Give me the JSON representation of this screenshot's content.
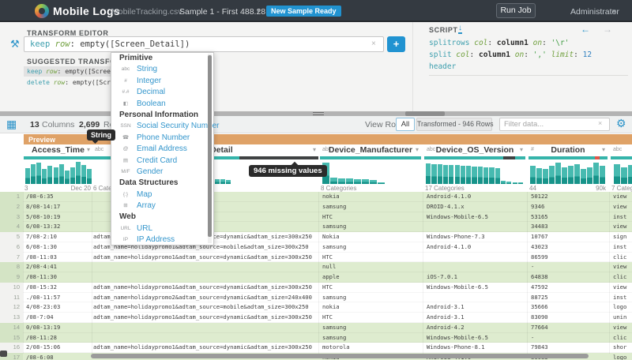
{
  "topbar": {
    "app_title": "Mobile Logs",
    "file_name": "MobileTracking.csv",
    "sample_label": "Sample 1 - First 488.28KB",
    "sample_caret": "▾",
    "new_sample_badge": "New Sample Ready",
    "run_job_label": "Run Job",
    "user_label": "Administrator",
    "user_caret": "▾"
  },
  "transform_editor": {
    "title": "TRANSFORM EDITOR",
    "hammer_icon": "⚒",
    "input_tokens": [
      [
        "keep",
        "kw"
      ],
      [
        " ",
        "pl"
      ],
      [
        "row",
        "param"
      ],
      [
        ": ",
        "pl"
      ],
      [
        "empty([Screen_Detail])",
        "pl"
      ]
    ],
    "clear_icon": "×",
    "add_button": "+",
    "suggested_title": "SUGGESTED TRANSFORMS",
    "suggestions": [
      {
        "selected": true,
        "tokens": [
          [
            "keep",
            "kw"
          ],
          [
            " ",
            "pl"
          ],
          [
            "row",
            "param"
          ],
          [
            ": ",
            "pl"
          ],
          [
            "empty([Screen_",
            "pl"
          ]
        ]
      },
      {
        "selected": false,
        "tokens": [
          [
            "delete",
            "kw"
          ],
          [
            " ",
            "pl"
          ],
          [
            "row",
            "param"
          ],
          [
            ": ",
            "pl"
          ],
          [
            "empty([Scre",
            "pl"
          ]
        ]
      }
    ]
  },
  "script_panel": {
    "title": "SCRIPT",
    "download_icon": "↓",
    "back_icon": "←",
    "forward_icon": "→",
    "lines": [
      [
        [
          "splitrows",
          "kw"
        ],
        [
          " ",
          "pl"
        ],
        [
          "col",
          "param"
        ],
        [
          ": ",
          "pl"
        ],
        [
          "column1",
          "val"
        ],
        [
          " ",
          "pl"
        ],
        [
          "on",
          "param"
        ],
        [
          ": ",
          "pl"
        ],
        [
          "'\\r'",
          "str"
        ]
      ],
      [
        [
          "split",
          "kw"
        ],
        [
          " ",
          "pl"
        ],
        [
          "col",
          "param"
        ],
        [
          ": ",
          "pl"
        ],
        [
          "column1",
          "val"
        ],
        [
          " ",
          "pl"
        ],
        [
          "on",
          "param"
        ],
        [
          ": ",
          "pl"
        ],
        [
          "','",
          "str"
        ],
        [
          " ",
          "pl"
        ],
        [
          "limit",
          "param"
        ],
        [
          ": ",
          "pl"
        ],
        [
          "12",
          "num"
        ]
      ],
      [
        [
          "header",
          "kw"
        ]
      ]
    ]
  },
  "type_dropdown": {
    "sections": [
      {
        "header": "Primitive",
        "items": [
          {
            "icon": "abc-icon",
            "glyph": "abc",
            "label": "String"
          },
          {
            "icon": "integer-icon",
            "glyph": "#",
            "label": "Integer"
          },
          {
            "icon": "decimal-icon",
            "glyph": "#.#",
            "label": "Decimal"
          },
          {
            "icon": "boolean-icon",
            "glyph": "◧",
            "label": "Boolean"
          }
        ]
      },
      {
        "header": "Personal Information",
        "items": [
          {
            "icon": "ssn-icon",
            "glyph": "SSN",
            "label": "Social Security Number"
          },
          {
            "icon": "phone-icon",
            "glyph": "☎",
            "label": "Phone Number"
          },
          {
            "icon": "email-icon",
            "glyph": "@",
            "label": "Email Address"
          },
          {
            "icon": "credit-card-icon",
            "glyph": "▤",
            "label": "Credit Card"
          },
          {
            "icon": "gender-icon",
            "glyph": "M/F",
            "label": "Gender"
          }
        ]
      },
      {
        "header": "Data Structures",
        "items": [
          {
            "icon": "map-icon",
            "glyph": "{:}",
            "label": "Map"
          },
          {
            "icon": "array-icon",
            "glyph": "⊞",
            "label": "Array"
          }
        ]
      },
      {
        "header": "Web",
        "items": [
          {
            "icon": "url-icon",
            "glyph": "URL",
            "label": "URL"
          },
          {
            "icon": "ip-icon",
            "glyph": "IP",
            "label": "IP Address"
          }
        ]
      }
    ]
  },
  "grid_toolbar": {
    "grid_icon": "▦",
    "columns_count": "13",
    "columns_word": "Columns",
    "rows_count": "2,699",
    "rows_word": "Rows",
    "view_rows_label": "View Rows",
    "view_all_label": "All",
    "view_transformed_label": "Transformed - 946 Rows",
    "filter_placeholder": "Filter data...",
    "filter_clear_icon": "×",
    "gear_icon": "⚙"
  },
  "preview_label": "Preview",
  "tooltips": {
    "type_tooltip": "String",
    "missing_tooltip": "946 missing values"
  },
  "colors": {
    "accent_blue": "#2193d1",
    "teal": "#35b4aa",
    "bar_light": "#47bab0",
    "bar_dark": "#17948a",
    "quality_dark": "#3f4243",
    "quality_red": "#e2574b",
    "preview_orange": "#dfa267",
    "row_green": "#deeccf"
  },
  "chart_data": {
    "type": "bar",
    "note": "per-column value histograms; bars = [x_offset_px, height_px], heights relative to 29px max",
    "columns": [
      {
        "title": "Access_Time",
        "glyph": "",
        "caret": "▾",
        "quality": [
          [
            "teal",
            0,
            1
          ]
        ],
        "bars": [
          [
            2,
            20
          ],
          [
            9.1,
            25
          ],
          [
            16.2,
            27
          ],
          [
            23.3,
            19
          ],
          [
            30.4,
            23
          ],
          [
            37.5,
            21
          ],
          [
            44.6,
            25
          ],
          [
            51.7,
            17
          ],
          [
            58.8,
            21
          ],
          [
            65.9,
            28
          ],
          [
            73,
            24
          ],
          [
            80.1,
            19
          ]
        ],
        "axis_left": "3",
        "axis_right": "Dec 20"
      },
      {
        "title": "Screen_Detail",
        "glyph": "abc",
        "caret": "▾",
        "quality": [
          [
            "teal",
            0,
            0.65
          ],
          [
            "dark",
            0.65,
            1
          ]
        ],
        "bars": [
          [
            155,
            6
          ],
          [
            162,
            6
          ],
          [
            169,
            5
          ]
        ],
        "axis_left": "6 Categories",
        "axis_right": ""
      },
      {
        "title": "Device_Manufacturer",
        "glyph": "abc",
        "caret": "▾",
        "quality": [
          [
            "teal",
            0,
            1
          ]
        ],
        "bars": [
          [
            3,
            27
          ],
          [
            13,
            8
          ],
          [
            23,
            7
          ],
          [
            33,
            7
          ],
          [
            43,
            6
          ],
          [
            53,
            6
          ],
          [
            63,
            5
          ],
          [
            73,
            2
          ]
        ],
        "axis_left": "8 Categories",
        "axis_right": ""
      },
      {
        "title": "Device_OS_Version",
        "glyph": "abc",
        "caret": "▾",
        "quality": [
          [
            "teal",
            0,
            0.78
          ],
          [
            "dark",
            0.78,
            0.9
          ],
          [
            "teal",
            0.9,
            1
          ]
        ],
        "bars": [
          [
            2,
            26
          ],
          [
            9.3,
            25
          ],
          [
            16.6,
            25
          ],
          [
            23.9,
            24
          ],
          [
            31.2,
            24
          ],
          [
            38.5,
            24
          ],
          [
            45.8,
            23
          ],
          [
            53.1,
            23
          ],
          [
            60.4,
            22
          ],
          [
            67.7,
            22
          ],
          [
            75,
            21
          ],
          [
            82.3,
            21
          ],
          [
            89.6,
            20
          ],
          [
            96.9,
            4
          ],
          [
            104.2,
            3
          ],
          [
            111.5,
            2
          ],
          [
            118.8,
            2
          ]
        ],
        "axis_left": "17 Categories",
        "axis_right": ""
      },
      {
        "title": "Duration",
        "glyph": "#",
        "caret": "▾",
        "quality": [
          [
            "teal",
            0,
            0.84
          ],
          [
            "red",
            0.84,
            0.9
          ],
          [
            "teal",
            0.9,
            1
          ]
        ],
        "bars": [
          [
            2,
            23
          ],
          [
            10,
            20
          ],
          [
            18,
            19
          ],
          [
            26,
            23
          ],
          [
            34,
            27
          ],
          [
            42,
            21
          ],
          [
            50,
            23
          ],
          [
            58,
            25
          ],
          [
            66,
            19
          ],
          [
            74,
            21
          ],
          [
            82,
            27
          ],
          [
            90,
            23
          ]
        ],
        "axis_left": "44",
        "axis_right": "90k"
      },
      {
        "title": "",
        "glyph": "abc",
        "caret": "",
        "quality": [
          [
            "teal",
            0,
            1
          ]
        ],
        "bars": [
          [
            4,
            25
          ],
          [
            13,
            21
          ],
          [
            22,
            24
          ]
        ],
        "axis_left": "7 Categ",
        "axis_right": ""
      }
    ]
  },
  "grid_rows": [
    {
      "n": "1",
      "green": true,
      "cells": [
        "/08-6:35",
        "",
        "nokia",
        "Android-4.1.0",
        "50122",
        "view"
      ]
    },
    {
      "n": "2",
      "green": true,
      "cells": [
        "8/08-14:17",
        "",
        "samsung",
        "DROID-4.1.x",
        "9346",
        "view"
      ]
    },
    {
      "n": "3",
      "green": true,
      "cells": [
        "5/08-10:19",
        "",
        "HTC",
        "Windows-Mobile-6.5",
        "53165",
        "inst"
      ]
    },
    {
      "n": "4",
      "green": true,
      "cells": [
        "6/08-13:32",
        "",
        "samsung",
        "",
        "34483",
        "view"
      ]
    },
    {
      "n": "5",
      "green": false,
      "cells": [
        "7/08-2:10",
        "adtam_name=holidaypromo1&adtam_source=dynamic&adtam_size=300x250",
        "Nokia",
        "Windows-Phone-7.3",
        "10767",
        "sign"
      ]
    },
    {
      "n": "6",
      "green": false,
      "cells": [
        "6/08-1:30",
        "adtam_name=holidaypromo1&adtam_source=mobile&adtam_size=300x250",
        "samsung",
        "Android-4.1.0",
        "43023",
        "inst"
      ]
    },
    {
      "n": "7",
      "green": false,
      "cells": [
        "/08-11:03",
        "adtam_name=holidaypromo1&adtam_source=dynamic&adtam_size=300x250",
        "HTC",
        "",
        "86599",
        "clic"
      ]
    },
    {
      "n": "8",
      "green": true,
      "cells": [
        "2/08-4:41",
        "",
        "null",
        "",
        "-",
        "view"
      ]
    },
    {
      "n": "9",
      "green": true,
      "cells": [
        "/08-11:30",
        "",
        "apple",
        "iOS-7.0.1",
        "64838",
        "clic"
      ]
    },
    {
      "n": "10",
      "green": false,
      "cells": [
        "/08-15:32",
        "adtam_name=holidaypromo1&adtam_source=dynamic&adtam_size=300x250",
        "HTC",
        "Windows-Mobile-6.5",
        "47592",
        "view"
      ]
    },
    {
      "n": "11",
      "green": false,
      "cells": [
        "./08-11:57",
        "adtam_name=holidaypromo2&adtam_source=dynamic&adtam_size=240x400",
        "samsung",
        "",
        "88725",
        "inst"
      ]
    },
    {
      "n": "12",
      "green": false,
      "cells": [
        "4/08-23:03",
        "adtam_name=holidaypromo1&adtam_source=mobile&adtam_size=300x250",
        "nokia",
        "Android-3.1",
        "35666",
        "logo"
      ]
    },
    {
      "n": "13",
      "green": false,
      "cells": [
        "/08-7:04",
        "adtam_name=holidaypromo1&adtam_source=dynamic&adtam_size=300x250",
        "HTC",
        "Android-3.1",
        "83090",
        "unin"
      ]
    },
    {
      "n": "14",
      "green": true,
      "cells": [
        "0/08-13:19",
        "",
        "samsung",
        "Android-4.2",
        "77664",
        "view"
      ]
    },
    {
      "n": "15",
      "green": true,
      "cells": [
        "/08-11:28",
        "",
        "samsung",
        "Windows-Mobile-6.5",
        "-",
        "clic"
      ]
    },
    {
      "n": "16",
      "green": false,
      "cells": [
        "2/08-15:06",
        "adtam_name=holidaypromo1&adtam_source=dynamic&adtam_size=300x250",
        "motorola",
        "Windows-Phone-8.1",
        "79843",
        "shor"
      ]
    },
    {
      "n": "17",
      "green": true,
      "cells": [
        "/08-6:08",
        "",
        "nokia",
        "Android-4.1.0",
        "86083",
        "logo"
      ]
    }
  ]
}
